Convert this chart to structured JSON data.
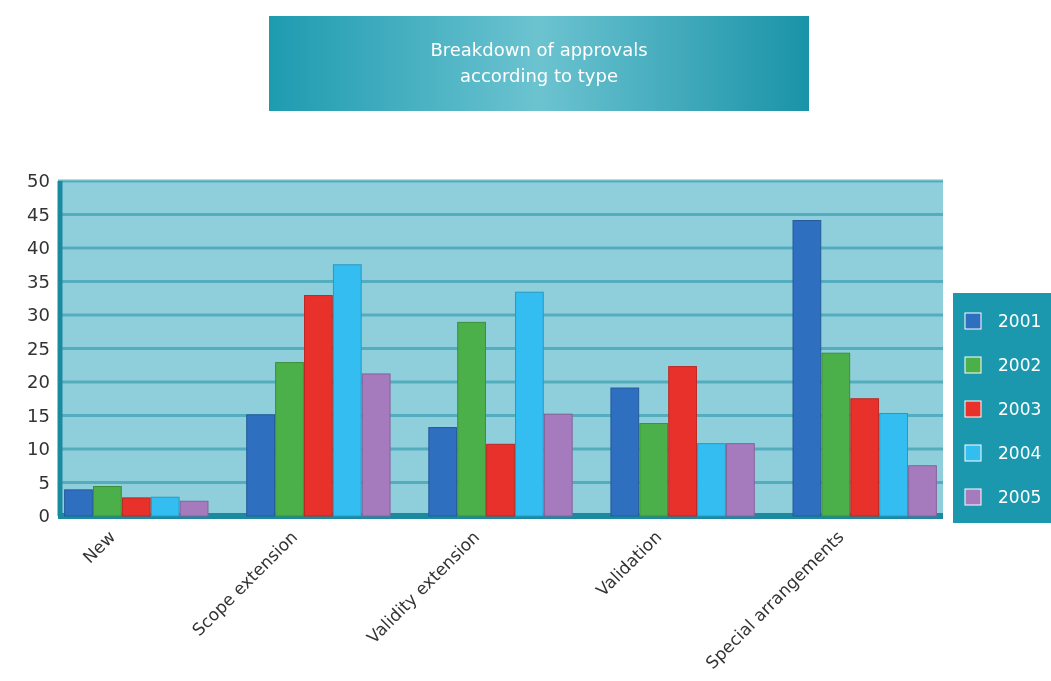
{
  "chart_data": {
    "type": "bar",
    "title": "Breakdown of approvals\naccording to type",
    "categories": [
      "New",
      "Scope extension",
      "Validity extension",
      "Validation",
      "Special arrangements"
    ],
    "series": [
      {
        "name": "2001",
        "color": "#2f6fc0",
        "values": [
          3.9,
          15.1,
          13.2,
          19.1,
          44.1
        ]
      },
      {
        "name": "2002",
        "color": "#4cb04a",
        "values": [
          4.4,
          22.9,
          28.9,
          13.8,
          24.3
        ]
      },
      {
        "name": "2003",
        "color": "#e8312a",
        "values": [
          2.7,
          32.9,
          10.7,
          22.3,
          17.5
        ]
      },
      {
        "name": "2004",
        "color": "#33bdf0",
        "values": [
          2.8,
          37.5,
          33.4,
          10.8,
          15.3
        ]
      },
      {
        "name": "2005",
        "color": "#a57bbd",
        "values": [
          2.2,
          21.2,
          15.2,
          10.8,
          7.5
        ]
      }
    ],
    "ylim": [
      0,
      50
    ],
    "yticks": [
      0,
      5,
      10,
      15,
      20,
      25,
      30,
      35,
      40,
      45,
      50
    ],
    "grid": "y",
    "legend": "right"
  }
}
